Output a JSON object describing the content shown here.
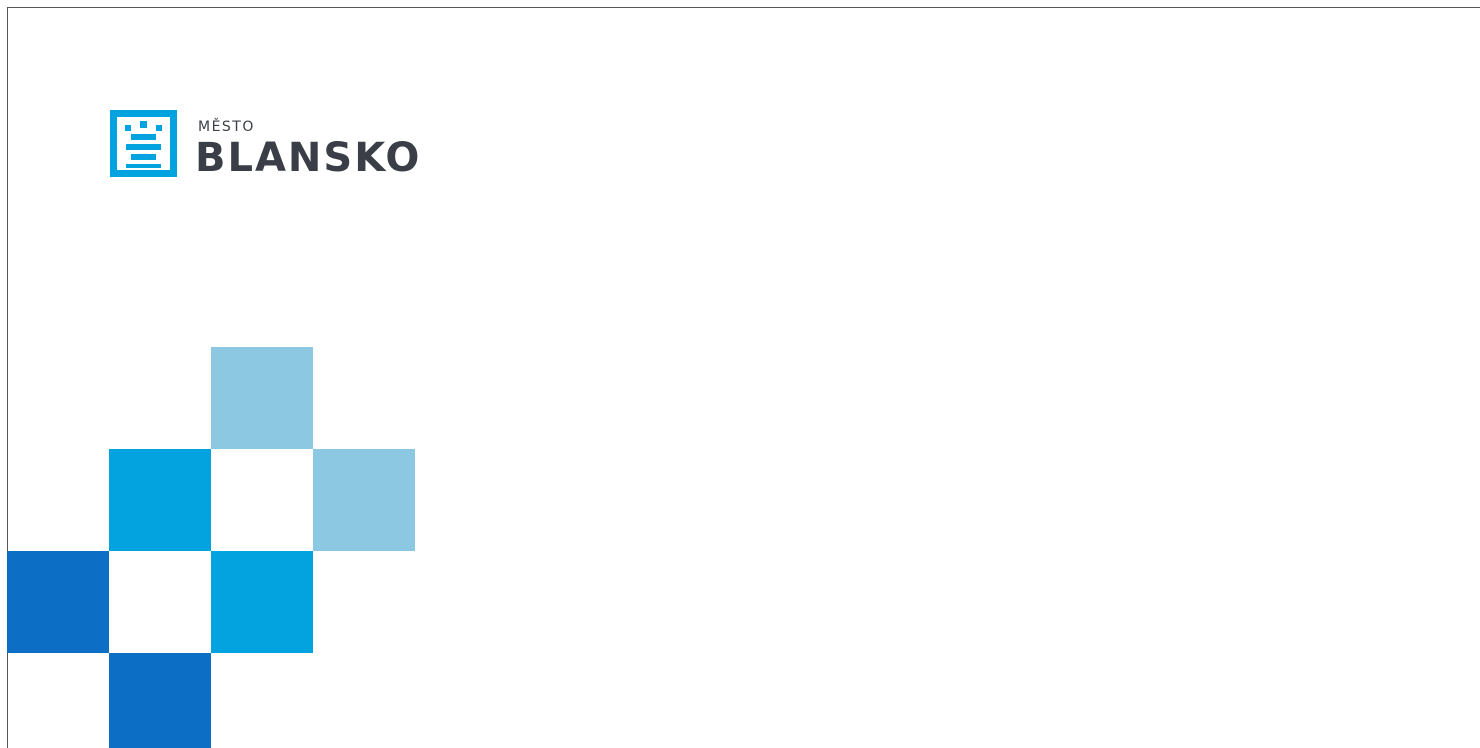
{
  "logo": {
    "top": "MĚSTO",
    "name": "BLANSKO"
  }
}
